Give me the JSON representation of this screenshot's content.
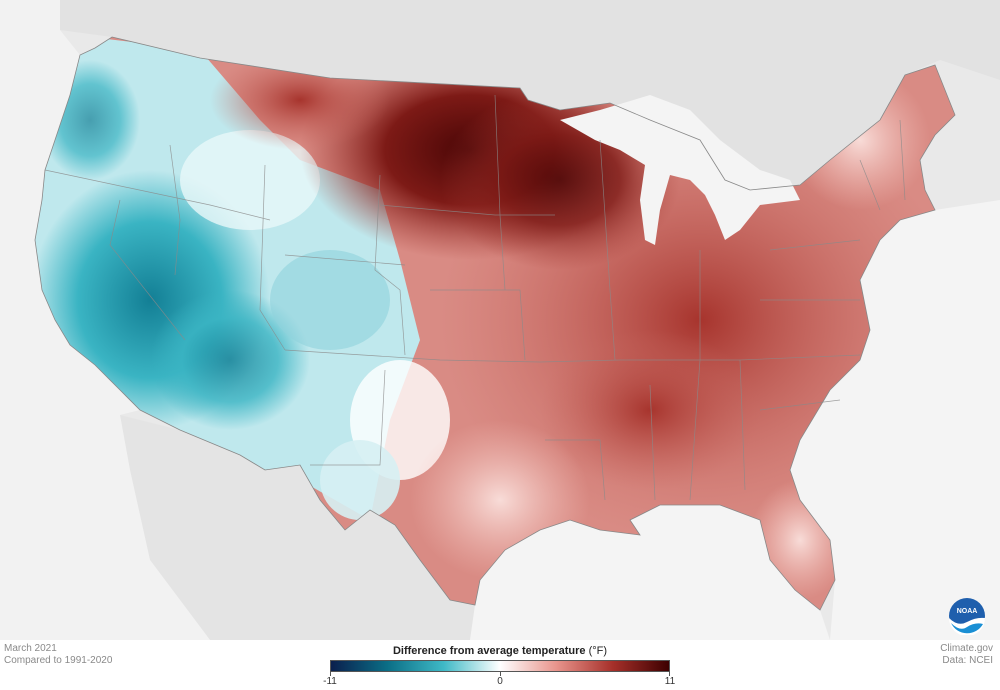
{
  "map": {
    "title": "Difference from average temperature",
    "unit": "(°F)",
    "date": "March 2021",
    "baseline": "Compared to 1991-2020",
    "site": "Climate.gov",
    "source": "Data: NCEI",
    "logo_text": "NOAA",
    "legend": {
      "min": "-11",
      "mid": "0",
      "max": "11",
      "stops": [
        "#0b1f4d",
        "#0b6e86",
        "#3fb9c6",
        "#ffffff",
        "#e8948c",
        "#a6302a",
        "#3d0000"
      ]
    },
    "colors": {
      "land_background": "#e9e9e9",
      "water": "#f4f4f4",
      "border": "#8c8c8c",
      "warm": "#b3403b",
      "cool": "#1f9fb3"
    }
  }
}
